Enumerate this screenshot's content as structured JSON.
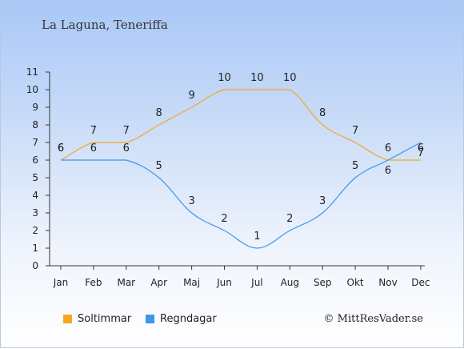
{
  "chart_data": {
    "type": "line",
    "title": "La Laguna, Teneriffa",
    "categories": [
      "Jan",
      "Feb",
      "Mar",
      "Apr",
      "Maj",
      "Jun",
      "Jul",
      "Aug",
      "Sep",
      "Okt",
      "Nov",
      "Dec"
    ],
    "ylim": [
      0,
      11
    ],
    "yticks": [
      "0",
      "1",
      "2",
      "3",
      "4",
      "5",
      "6",
      "7",
      "8",
      "9",
      "10",
      "11"
    ],
    "series": [
      {
        "name": "Soltimmar",
        "color": "#f5a623",
        "values": [
          6,
          7,
          7,
          8,
          9,
          10,
          10,
          10,
          8,
          7,
          6,
          6
        ]
      },
      {
        "name": "Regndagar",
        "color": "#3c96e8",
        "values": [
          6,
          6,
          6,
          5,
          3,
          2,
          1,
          2,
          3,
          5,
          6,
          7
        ]
      }
    ],
    "legend_position": "bottom-left",
    "grid": false
  },
  "credit": "© MittResVader.se"
}
